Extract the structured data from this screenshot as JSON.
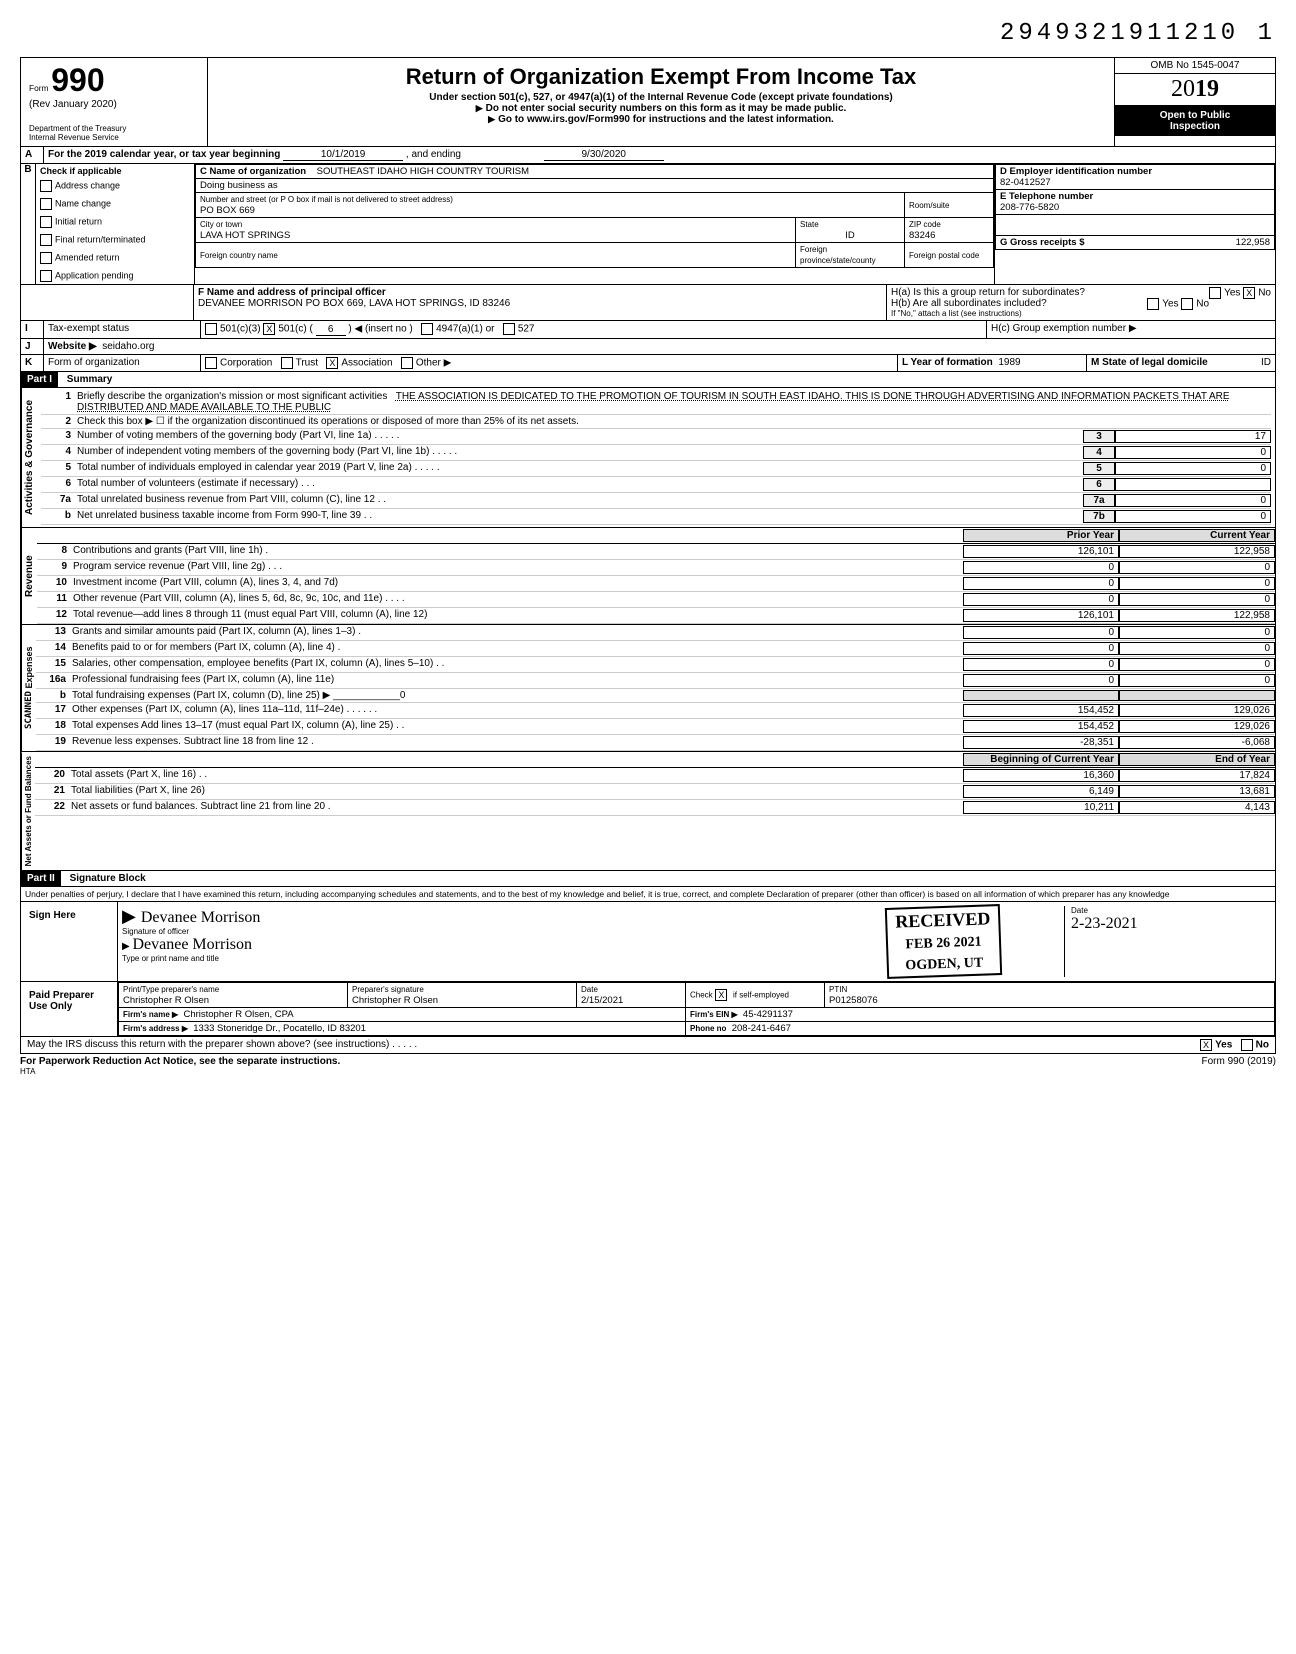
{
  "doc_id": "2949321911210 1",
  "form": {
    "number": "990",
    "prefix": "Form",
    "rev": "(Rev  January 2020)",
    "dept": "Department of the Treasury",
    "irs": "Internal Revenue Service",
    "title": "Return of Organization Exempt From Income Tax",
    "sub1": "Under section 501(c), 527, or 4947(a)(1) of the Internal Revenue Code (except private foundations)",
    "sub2": "Do not enter social security numbers on this form as it may be made public.",
    "sub3": "Go to www.irs.gov/Form990 for instructions and the latest information.",
    "omb": "OMB No 1545-0047",
    "year": "2019",
    "open1": "Open to Public",
    "open2": "Inspection"
  },
  "periodA": {
    "label": "For the 2019 calendar year, or tax year beginning",
    "begin": "10/1/2019",
    "ending_label": ", and ending",
    "end": "9/30/2020"
  },
  "secB": {
    "label": "Check if applicable",
    "address_change": "Address change",
    "name_change": "Name change",
    "initial_return": "Initial return",
    "final": "Final return/terminated",
    "amended": "Amended return",
    "pending": "Application pending"
  },
  "secC": {
    "name_label": "C  Name of organization",
    "name": "SOUTHEAST IDAHO HIGH COUNTRY TOURISM",
    "dba_label": "Doing business as",
    "addr_label": "Number and street (or P O  box if mail is not delivered to street address)",
    "room_label": "Room/suite",
    "addr": "PO BOX 669",
    "city_label": "City or town",
    "city": "LAVA HOT SPRINGS",
    "state_label": "State",
    "state": "ID",
    "zip_label": "ZIP code",
    "zip": "83246",
    "foreign_country": "Foreign country name",
    "foreign_prov": "Foreign province/state/county",
    "foreign_postal": "Foreign postal code"
  },
  "secD": {
    "label": "D   Employer identification number",
    "value": "82-0412527"
  },
  "secE": {
    "label": "E   Telephone number",
    "value": "208-776-5820"
  },
  "secG": {
    "label": "G   Gross receipts $",
    "value": "122,958"
  },
  "secF": {
    "label": "F  Name and address of principal officer",
    "value": "DEVANEE MORRISON PO BOX 669, LAVA HOT SPRINGS, ID  83246"
  },
  "secH": {
    "a": "H(a) Is this a group return for subordinates?",
    "a_yes": "Yes",
    "a_no": "No",
    "a_checked": "X",
    "b": "H(b) Are all subordinates included?",
    "b_yes": "Yes",
    "b_no": "No",
    "c_note": "If \"No,\" attach a list  (see instructions)",
    "c": "H(c) Group exemption number ▶"
  },
  "secI": {
    "label": "Tax-exempt status",
    "c3": "501(c)(3)",
    "c": "501(c)",
    "insert": "(insert no )",
    "num": "6",
    "a1": "4947(a)(1) or",
    "527": "527",
    "c_checked": "X"
  },
  "secJ": {
    "label": "Website ▶",
    "value": "seidaho.org"
  },
  "secK": {
    "label": "Form of organization",
    "corp": "Corporation",
    "trust": "Trust",
    "assoc": "Association",
    "other": "Other ▶",
    "assoc_checked": "X"
  },
  "secL": {
    "label": "L Year of formation",
    "value": "1989"
  },
  "secM": {
    "label": "M State of legal domicile",
    "value": "ID"
  },
  "part1": {
    "header": "Part I",
    "title": "Summary",
    "vert_ag": "Activities & Governance",
    "vert_rev": "Revenue",
    "vert_exp": "Expenses",
    "vert_na": "Net Assets or Fund Balances",
    "line1_label": "Briefly describe the organization's mission or most significant activities",
    "line1_text": "THE ASSOCIATION IS DEDICATED TO THE PROMOTION OF TOURISM IN SOUTH EAST IDAHO. THIS IS DONE THROUGH ADVERTISING AND INFORMATION PACKETS THAT ARE DISTRIBUTED AND MADE AVAILABLE TO THE PUBLIC",
    "line2": "Check this box ▶ ☐ if the organization discontinued its operations or disposed of more than 25% of its net assets.",
    "lines": [
      {
        "n": "3",
        "d": "Number of voting members of the governing body (Part VI, line 1a) . . . . .",
        "lbl": "3",
        "cur": "17"
      },
      {
        "n": "4",
        "d": "Number of independent voting members of the governing body (Part VI, line 1b) . . . . .",
        "lbl": "4",
        "cur": "0"
      },
      {
        "n": "5",
        "d": "Total number of individuals employed in calendar year 2019 (Part V, line 2a) . . . . .",
        "lbl": "5",
        "cur": "0"
      },
      {
        "n": "6",
        "d": "Total number of volunteers (estimate if necessary) . . .",
        "lbl": "6",
        "cur": ""
      },
      {
        "n": "7a",
        "d": "Total unrelated business revenue from Part VIII, column (C), line 12 . .",
        "lbl": "7a",
        "cur": "0"
      },
      {
        "n": "b",
        "d": "Net unrelated business taxable income from Form 990-T, line 39 . .",
        "lbl": "7b",
        "cur": "0"
      }
    ],
    "col_prior": "Prior Year",
    "col_current": "Current Year",
    "rev_lines": [
      {
        "n": "8",
        "d": "Contributions and grants (Part VIII, line 1h) .",
        "p": "126,101",
        "c": "122,958"
      },
      {
        "n": "9",
        "d": "Program service revenue (Part VIII, line 2g) . . .",
        "p": "0",
        "c": "0"
      },
      {
        "n": "10",
        "d": "Investment income (Part VIII, column (A), lines 3, 4, and 7d)",
        "p": "0",
        "c": "0"
      },
      {
        "n": "11",
        "d": "Other revenue (Part VIII, column (A), lines 5, 6d, 8c, 9c, 10c, and 11e) . . . .",
        "p": "0",
        "c": "0"
      },
      {
        "n": "12",
        "d": "Total revenue—add lines 8 through 11 (must equal Part VIII, column (A), line 12)",
        "p": "126,101",
        "c": "122,958"
      }
    ],
    "exp_lines": [
      {
        "n": "13",
        "d": "Grants and similar amounts paid (Part IX, column (A), lines 1–3) .",
        "p": "0",
        "c": "0"
      },
      {
        "n": "14",
        "d": "Benefits paid to or for members (Part IX, column (A), line 4) .",
        "p": "0",
        "c": "0"
      },
      {
        "n": "15",
        "d": "Salaries, other compensation, employee benefits (Part IX, column (A), lines 5–10) . .",
        "p": "0",
        "c": "0"
      },
      {
        "n": "16a",
        "d": "Professional fundraising fees (Part IX, column (A), line 11e)",
        "p": "0",
        "c": "0"
      },
      {
        "n": "b",
        "d": "Total fundraising expenses (Part IX, column (D), line 25) ▶ ____________0",
        "p": "",
        "c": ""
      },
      {
        "n": "17",
        "d": "Other expenses (Part IX, column (A), lines 11a–11d, 11f–24e) . . . . . .",
        "p": "154,452",
        "c": "129,026"
      },
      {
        "n": "18",
        "d": "Total expenses  Add lines 13–17 (must equal Part IX, column (A), line 25) . .",
        "p": "154,452",
        "c": "129,026"
      },
      {
        "n": "19",
        "d": "Revenue less expenses. Subtract line 18 from line 12 .",
        "p": "-28,351",
        "c": "-6,068"
      }
    ],
    "col_begin": "Beginning of Current Year",
    "col_end": "End of Year",
    "na_lines": [
      {
        "n": "20",
        "d": "Total assets (Part X, line 16) . .",
        "p": "16,360",
        "c": "17,824"
      },
      {
        "n": "21",
        "d": "Total liabilities (Part X, line 26)",
        "p": "6,149",
        "c": "13,681"
      },
      {
        "n": "22",
        "d": "Net assets or fund balances. Subtract line 21 from line 20 .",
        "p": "10,211",
        "c": "4,143"
      }
    ]
  },
  "part2": {
    "header": "Part II",
    "title": "Signature Block",
    "perjury": "Under penalties of perjury, I declare that I have examined this return, including accompanying schedules and statements, and to the best of my knowledge and belief, it is true, correct, and complete  Declaration of preparer (other than officer) is based on all information of which preparer has any knowledge"
  },
  "sign": {
    "label": "Sign Here",
    "sig_of_officer": "Signature of officer",
    "name_hand": "Devanee Morrison",
    "name_print": "Devanee Morrison",
    "type_label": "Type or print name and title",
    "date_label": "Date",
    "date": "2-23-2021"
  },
  "stamp": {
    "received": "RECEIVED",
    "date": "FEB 26 2021",
    "city": "OGDEN, UT"
  },
  "paid": {
    "label": "Paid Preparer Use Only",
    "prep_name_label": "Print/Type preparer's name",
    "prep_name": "Christopher R Olsen",
    "prep_sig_label": "Preparer's signature",
    "prep_sig": "Christopher R Olsen",
    "date_label": "Date",
    "date": "2/15/2021",
    "check_label": "Check",
    "check_if": "if self-employed",
    "check_x": "X",
    "ptin_label": "PTIN",
    "ptin": "P01258076",
    "firm_name_label": "Firm's name ▶",
    "firm_name": "Christopher R Olsen, CPA",
    "firm_ein_label": "Firm's EIN ▶",
    "firm_ein": "45-4291137",
    "firm_addr_label": "Firm's address ▶",
    "firm_addr": "1333 Stoneridge Dr., Pocatello, ID 83201",
    "phone_label": "Phone no",
    "phone": "208-241-6467"
  },
  "footer": {
    "q": "May the IRS discuss this return with the preparer shown above? (see instructions) . . . . .",
    "yes": "Yes",
    "no": "No",
    "yes_x": "X",
    "pra": "For Paperwork Reduction Act Notice, see the separate instructions.",
    "hta": "HTA",
    "form": "Form 990 (2019)"
  },
  "scanned": "SCANNED"
}
